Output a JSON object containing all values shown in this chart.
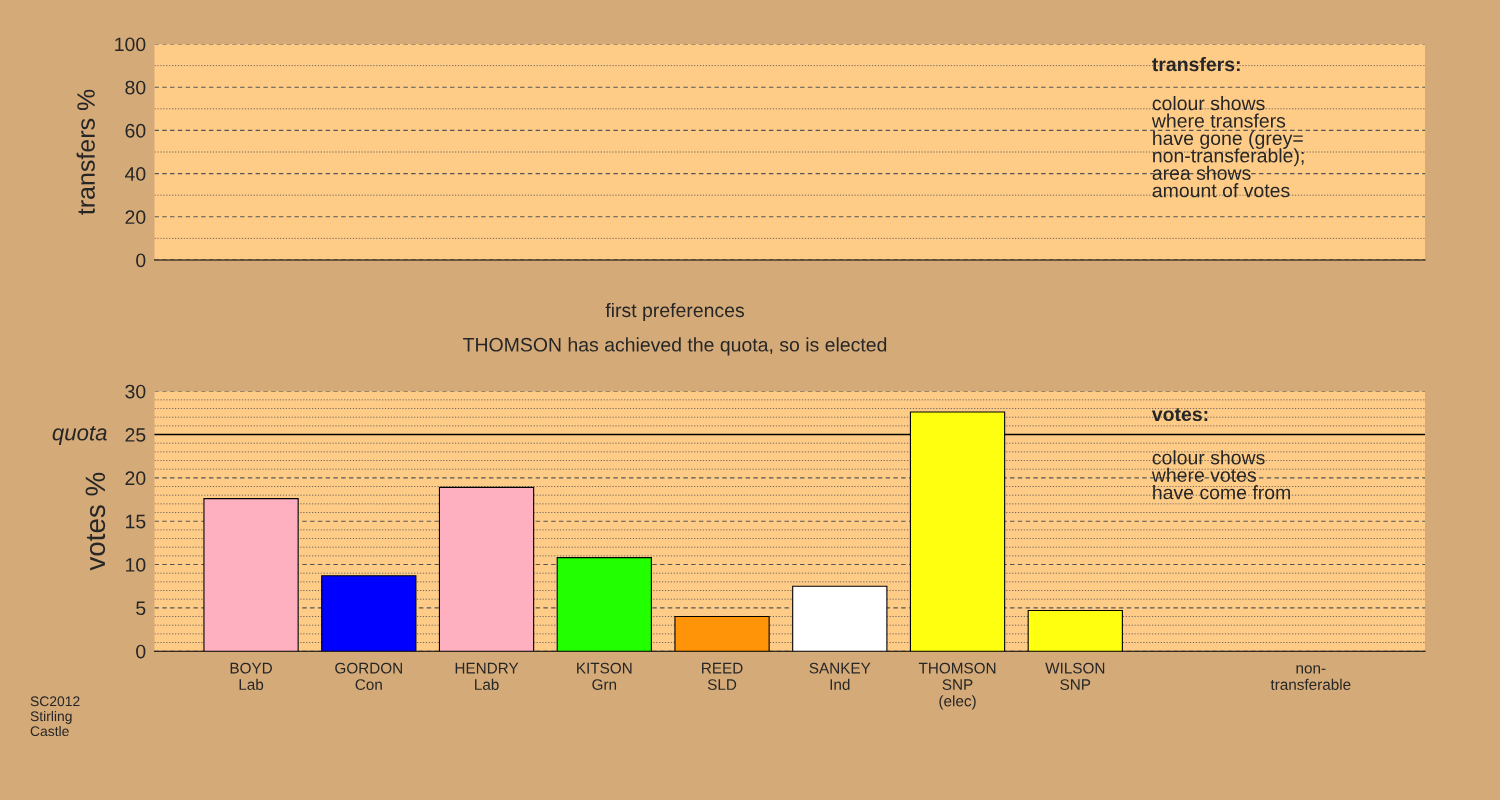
{
  "chart_data": [
    {
      "type": "bar",
      "ylabel": "transfers %",
      "categories": [
        null,
        null,
        null,
        null,
        null,
        null,
        null,
        null,
        null,
        null
      ],
      "values": [
        null,
        null,
        null,
        null,
        null,
        null,
        null,
        null,
        null,
        null
      ],
      "ylim": [
        0,
        100
      ],
      "yticks": [
        0,
        20,
        40,
        60,
        80,
        100
      ],
      "grid": "y",
      "tick_labels": "y",
      "annotations": [
        "transfers:",
        "colour shows\nwhere transfers\nhave gone (grey=\nnon-transferable);\narea shows\namount of votes"
      ]
    },
    {
      "type": "bar",
      "title": "first preferences",
      "subtitle": "THOMSON has achieved the quota, so is elected",
      "ylabel": "votes %",
      "categories": [
        "BOYD\nLab",
        "GORDON\nCon",
        "HENDRY\nLab",
        "KITSON\nGrn",
        "REED\nSLD",
        "SANKEY\nInd",
        "THOMSON\nSNP\n(elec)",
        "WILSON\nSNP",
        null,
        "non-\ntransferable"
      ],
      "values": [
        17.6,
        8.7,
        18.9,
        10.8,
        4.0,
        7.5,
        27.6,
        4.7,
        null,
        null
      ],
      "colors": [
        "#ffb0c0",
        "#0000ff",
        "#ffb0c0",
        "#22ff00",
        "#ff9408",
        "#ffffff",
        "#ffff10",
        "#ffff10",
        "#ffffff",
        "#ffffff"
      ],
      "ylim": [
        0,
        30
      ],
      "yticks": [
        0,
        5,
        10,
        15,
        20,
        25,
        30
      ],
      "grid": "y",
      "ref_lines": [
        {
          "axis": "y",
          "value": 25,
          "label": "quota"
        }
      ],
      "annotations": [
        "votes:",
        "colour shows\nwhere votes\nhave come from",
        "SC2012\nStirling\nCastle"
      ]
    }
  ]
}
